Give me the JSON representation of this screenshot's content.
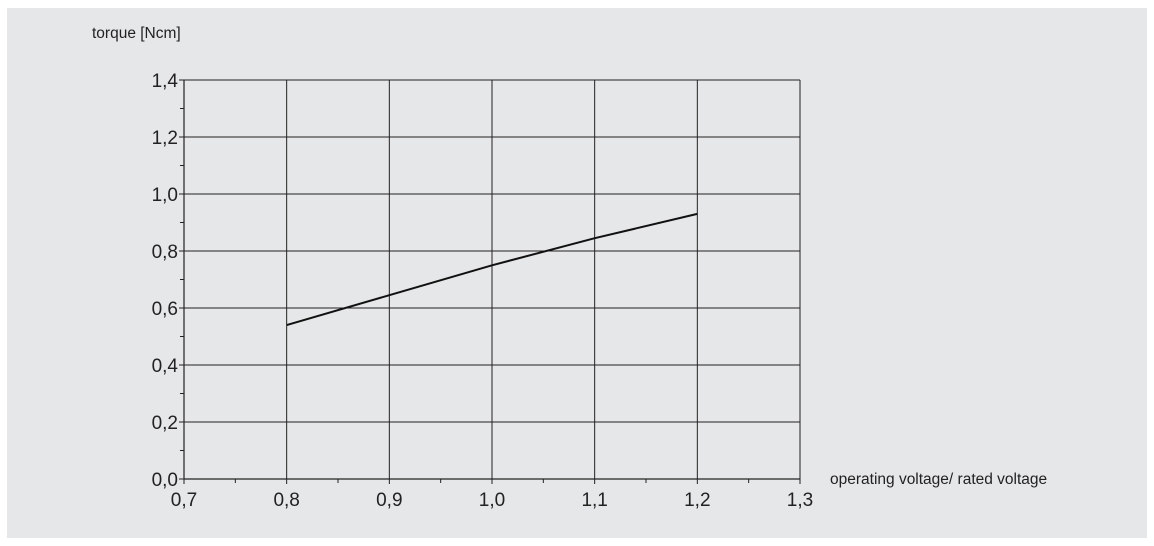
{
  "chart_data": {
    "type": "line",
    "ylabel": "torque [Ncm]",
    "xlabel": "operating voltage/ rated voltage",
    "xlim": [
      0.7,
      1.3
    ],
    "ylim": [
      0.0,
      1.4
    ],
    "x_ticks": [
      "0,7",
      "0,8",
      "0,9",
      "1,0",
      "1,1",
      "1,2",
      "1,3"
    ],
    "y_ticks": [
      "0,0",
      "0,2",
      "0,4",
      "0,6",
      "0,8",
      "1,0",
      "1,2",
      "1,4"
    ],
    "grid": true,
    "series": [
      {
        "x": [
          0.8,
          0.9,
          1.0,
          1.1,
          1.2
        ],
        "y": [
          0.54,
          0.645,
          0.75,
          0.845,
          0.93
        ]
      }
    ],
    "colors": {
      "line": "#111111",
      "grid": "#222222",
      "background": "#e6e7e8"
    }
  }
}
